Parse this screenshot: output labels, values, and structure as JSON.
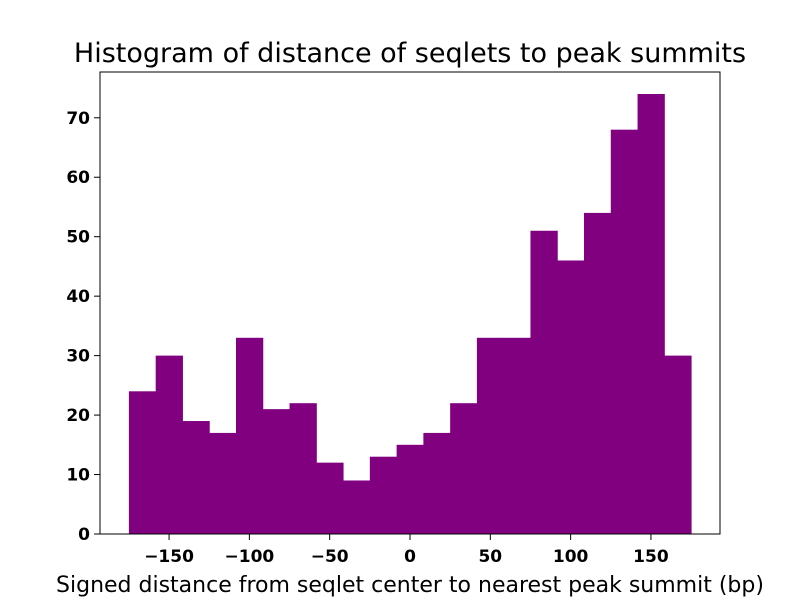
{
  "chart_data": {
    "type": "bar",
    "title": "Histogram of distance of seqlets to peak summits",
    "xlabel": "Signed distance from seqlet center to nearest peak summit (bp)",
    "ylabel": "",
    "color": "#800080",
    "bin_edges": [
      -175,
      -158.33,
      -141.67,
      -125,
      -108.33,
      -91.67,
      -75,
      -58.33,
      -41.67,
      -25,
      -8.33,
      8.33,
      25,
      41.67,
      58.33,
      75,
      91.67,
      108.33,
      125,
      141.67,
      158.33,
      175
    ],
    "values": [
      24,
      30,
      19,
      17,
      33,
      21,
      22,
      12,
      9,
      13,
      15,
      17,
      22,
      33,
      33,
      51,
      46,
      54,
      68,
      74,
      30
    ],
    "xlim": [
      -193,
      193
    ],
    "ylim": [
      0,
      77.7
    ],
    "x_ticks": [
      -150,
      -100,
      -50,
      0,
      50,
      100,
      150
    ],
    "x_tick_labels": [
      "−150",
      "−100",
      "−50",
      "0",
      "50",
      "100",
      "150"
    ],
    "y_ticks": [
      0,
      10,
      20,
      30,
      40,
      50,
      60,
      70
    ],
    "y_tick_labels": [
      "0",
      "10",
      "20",
      "30",
      "40",
      "50",
      "60",
      "70"
    ],
    "grid": false,
    "legend": "none"
  }
}
